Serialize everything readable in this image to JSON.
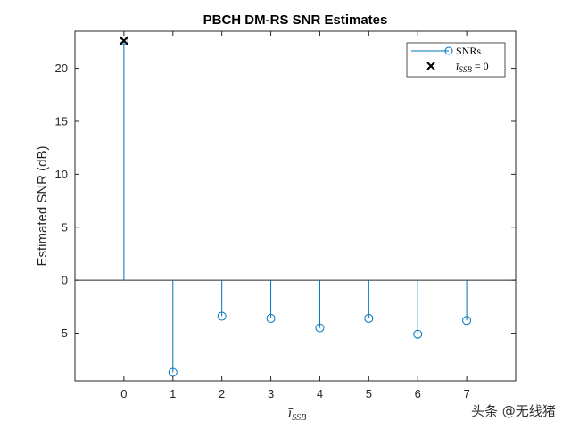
{
  "chart_data": {
    "type": "stem",
    "title": "PBCH DM-RS SNR Estimates",
    "xlabel": "ī_SSB",
    "ylabel": "Estimated SNR (dB)",
    "xlim": [
      -1,
      8
    ],
    "ylim": [
      -9.5,
      23.5
    ],
    "xticks": [
      "0",
      "1",
      "2",
      "3",
      "4",
      "5",
      "6",
      "7"
    ],
    "yticks": [
      "-5",
      "0",
      "5",
      "10",
      "15",
      "20"
    ],
    "x": [
      0,
      1,
      2,
      3,
      4,
      5,
      6,
      7
    ],
    "series": [
      {
        "name": "SNRs",
        "values": [
          22.6,
          -8.7,
          -3.4,
          -3.6,
          -4.5,
          -3.6,
          -5.1,
          -3.8
        ]
      },
      {
        "name": "ī_SSB = 0",
        "x": [
          0
        ],
        "values": [
          22.6
        ]
      }
    ],
    "legend_position": "top-right",
    "grid": false,
    "colors": {
      "stem": "#0072BD",
      "marker": "#000000"
    }
  },
  "watermark": "头条 @无线猪"
}
